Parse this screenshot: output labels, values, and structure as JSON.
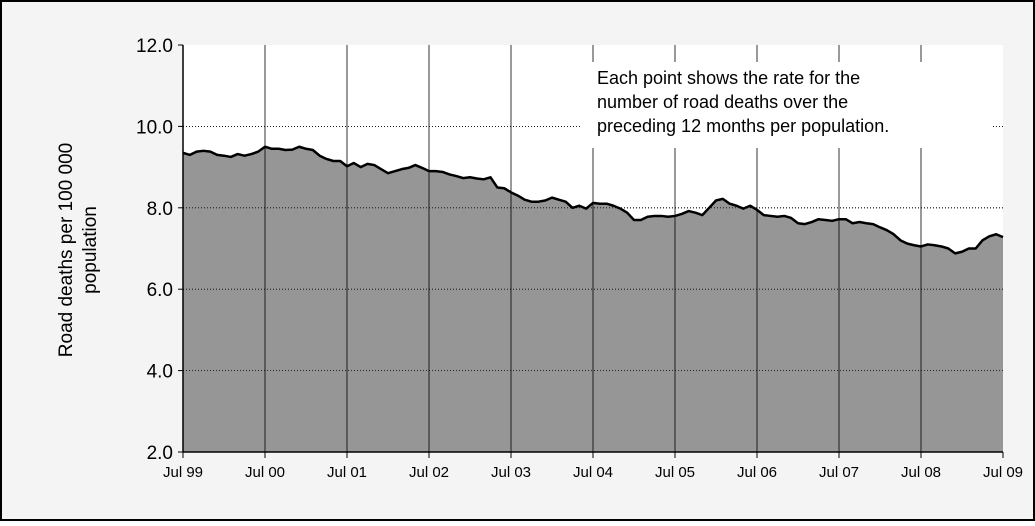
{
  "chart_data": {
    "type": "area",
    "y_label": [
      "Road deaths  per  100 000",
      "population"
    ],
    "annotation": [
      "Each point shows the rate for the",
      "number of road deaths over the",
      "preceding 12 months per population."
    ],
    "categories": [
      "Jul 99",
      null,
      null,
      null,
      null,
      null,
      null,
      null,
      null,
      null,
      null,
      null,
      "Jul 00",
      null,
      null,
      null,
      null,
      null,
      null,
      null,
      null,
      null,
      null,
      null,
      "Jul 01",
      null,
      null,
      null,
      null,
      null,
      null,
      null,
      null,
      null,
      null,
      null,
      "Jul 02",
      null,
      null,
      null,
      null,
      null,
      null,
      null,
      null,
      null,
      null,
      null,
      "Jul 03",
      null,
      null,
      null,
      null,
      null,
      null,
      null,
      null,
      null,
      null,
      null,
      "Jul 04",
      null,
      null,
      null,
      null,
      null,
      null,
      null,
      null,
      null,
      null,
      null,
      "Jul 05",
      null,
      null,
      null,
      null,
      null,
      null,
      null,
      null,
      null,
      null,
      null,
      "Jul 06",
      null,
      null,
      null,
      null,
      null,
      null,
      null,
      null,
      null,
      null,
      null,
      "Jul 07",
      null,
      null,
      null,
      null,
      null,
      null,
      null,
      null,
      null,
      null,
      null,
      "Jul 08",
      null,
      null,
      null,
      null,
      null,
      null,
      null,
      null,
      null,
      null,
      null,
      "Jul 09"
    ],
    "values": [
      9.35,
      9.3,
      9.38,
      9.4,
      9.38,
      9.3,
      9.28,
      9.25,
      9.32,
      9.28,
      9.32,
      9.38,
      9.5,
      9.45,
      9.45,
      9.42,
      9.43,
      9.5,
      9.45,
      9.42,
      9.28,
      9.2,
      9.15,
      9.15,
      9.02,
      9.1,
      9.0,
      9.08,
      9.05,
      8.95,
      8.85,
      8.9,
      8.95,
      8.98,
      9.05,
      8.98,
      8.9,
      8.9,
      8.88,
      8.82,
      8.78,
      8.73,
      8.75,
      8.72,
      8.7,
      8.75,
      8.5,
      8.48,
      8.38,
      8.3,
      8.2,
      8.15,
      8.15,
      8.18,
      8.25,
      8.2,
      8.15,
      8.0,
      8.05,
      7.98,
      8.12,
      8.1,
      8.1,
      8.05,
      7.98,
      7.88,
      7.7,
      7.7,
      7.78,
      7.8,
      7.8,
      7.78,
      7.8,
      7.85,
      7.92,
      7.88,
      7.82,
      8.0,
      8.18,
      8.22,
      8.1,
      8.05,
      7.98,
      8.05,
      7.95,
      7.82,
      7.8,
      7.78,
      7.8,
      7.75,
      7.62,
      7.6,
      7.65,
      7.72,
      7.7,
      7.68,
      7.72,
      7.72,
      7.62,
      7.65,
      7.62,
      7.6,
      7.52,
      7.45,
      7.35,
      7.2,
      7.12,
      7.08,
      7.05,
      7.1,
      7.08,
      7.05,
      7.0,
      6.88,
      6.92,
      7.0,
      7.0,
      7.2,
      7.3,
      7.35,
      7.28
    ],
    "color": "#969696",
    "line_color": "#000000",
    "ylim": [
      2,
      12
    ],
    "yticks": [
      {
        "value": 2,
        "label": "2.0"
      },
      {
        "value": 4,
        "label": "4.0"
      },
      {
        "value": 6,
        "label": "6.0"
      },
      {
        "value": 8,
        "label": "8.0"
      },
      {
        "value": 10,
        "label": "10.0"
      },
      {
        "value": 12,
        "label": "12.0"
      }
    ],
    "grid": true
  }
}
